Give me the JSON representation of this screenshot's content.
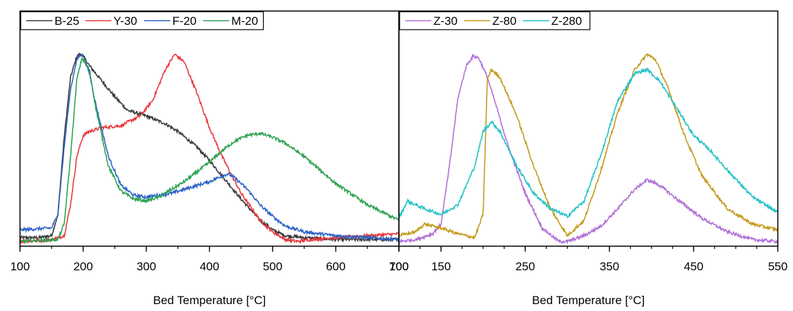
{
  "chart_data": [
    {
      "type": "line",
      "xlabel": "Bed Temperature [°C]",
      "ylabel": "",
      "xlim": [
        100,
        700
      ],
      "ylim": [
        0,
        1.0
      ],
      "xticks": [
        100,
        200,
        300,
        400,
        500,
        600,
        700
      ],
      "legend_position": "top-left",
      "series": [
        {
          "name": "B-25",
          "color": "#3a3a3a",
          "x": [
            100,
            130,
            150,
            160,
            170,
            180,
            190,
            198,
            210,
            230,
            250,
            270,
            300,
            330,
            350,
            380,
            400,
            420,
            450,
            480,
            500,
            520,
            550,
            600,
            650,
            700
          ],
          "y": [
            0.03,
            0.03,
            0.04,
            0.15,
            0.55,
            0.86,
            0.97,
            0.98,
            0.92,
            0.84,
            0.76,
            0.69,
            0.66,
            0.62,
            0.58,
            0.5,
            0.43,
            0.35,
            0.23,
            0.12,
            0.07,
            0.04,
            0.03,
            0.02,
            0.02,
            0.02
          ]
        },
        {
          "name": "Y-30",
          "color": "#e8383d",
          "x": [
            100,
            150,
            170,
            180,
            190,
            200,
            210,
            230,
            260,
            290,
            310,
            330,
            345,
            360,
            380,
            400,
            420,
            450,
            480,
            500,
            520,
            540,
            560,
            600,
            650,
            700
          ],
          "y": [
            0.01,
            0.02,
            0.04,
            0.2,
            0.45,
            0.56,
            0.58,
            0.6,
            0.61,
            0.66,
            0.74,
            0.9,
            0.98,
            0.94,
            0.78,
            0.6,
            0.45,
            0.26,
            0.12,
            0.06,
            0.02,
            0.01,
            0.02,
            0.03,
            0.04,
            0.05
          ]
        },
        {
          "name": "F-20",
          "color": "#2b63c6",
          "x": [
            100,
            150,
            160,
            170,
            180,
            190,
            195,
            200,
            210,
            220,
            240,
            260,
            280,
            300,
            320,
            340,
            360,
            380,
            400,
            420,
            430,
            440,
            460,
            480,
            500,
            520,
            550,
            600,
            650,
            700
          ],
          "y": [
            0.07,
            0.08,
            0.15,
            0.5,
            0.8,
            0.95,
            0.98,
            0.97,
            0.88,
            0.72,
            0.45,
            0.3,
            0.25,
            0.24,
            0.25,
            0.26,
            0.28,
            0.3,
            0.32,
            0.35,
            0.36,
            0.34,
            0.28,
            0.2,
            0.14,
            0.09,
            0.06,
            0.04,
            0.03,
            0.02
          ]
        },
        {
          "name": "M-20",
          "color": "#2ea352",
          "x": [
            100,
            160,
            170,
            180,
            190,
            198,
            210,
            220,
            240,
            260,
            280,
            300,
            320,
            340,
            360,
            380,
            400,
            420,
            440,
            460,
            480,
            500,
            520,
            550,
            600,
            650,
            700
          ],
          "y": [
            0.01,
            0.02,
            0.1,
            0.45,
            0.85,
            0.96,
            0.9,
            0.7,
            0.4,
            0.27,
            0.23,
            0.22,
            0.24,
            0.28,
            0.32,
            0.37,
            0.42,
            0.48,
            0.53,
            0.56,
            0.57,
            0.55,
            0.52,
            0.45,
            0.31,
            0.2,
            0.12
          ]
        }
      ]
    },
    {
      "type": "line",
      "xlabel": "Bed Temperature [°C]",
      "ylabel": "",
      "xlim": [
        100,
        550
      ],
      "ylim": [
        0,
        1.0
      ],
      "xticks": [
        100,
        150,
        250,
        350,
        450,
        550
      ],
      "legend_position": "top-left",
      "series": [
        {
          "name": "Z-30",
          "color": "#b06fd6",
          "x": [
            100,
            120,
            140,
            150,
            160,
            170,
            180,
            188,
            195,
            205,
            215,
            230,
            250,
            270,
            290,
            300,
            320,
            340,
            360,
            380,
            395,
            410,
            430,
            460,
            490,
            520,
            550
          ],
          "y": [
            0.01,
            0.02,
            0.05,
            0.1,
            0.4,
            0.75,
            0.92,
            0.97,
            0.96,
            0.86,
            0.72,
            0.5,
            0.26,
            0.08,
            0.01,
            0.01,
            0.04,
            0.09,
            0.18,
            0.28,
            0.33,
            0.3,
            0.23,
            0.13,
            0.06,
            0.02,
            0.01
          ]
        },
        {
          "name": "Z-80",
          "color": "#c39a1c",
          "x": [
            100,
            120,
            130,
            150,
            170,
            190,
            200,
            205,
            210,
            220,
            240,
            260,
            280,
            300,
            320,
            340,
            360,
            380,
            395,
            405,
            420,
            440,
            460,
            490,
            520,
            550
          ],
          "y": [
            0.04,
            0.06,
            0.1,
            0.08,
            0.05,
            0.03,
            0.15,
            0.85,
            0.9,
            0.86,
            0.66,
            0.4,
            0.18,
            0.04,
            0.12,
            0.38,
            0.68,
            0.9,
            0.98,
            0.95,
            0.8,
            0.55,
            0.35,
            0.18,
            0.1,
            0.07
          ]
        },
        {
          "name": "Z-280",
          "color": "#22c2c6",
          "x": [
            100,
            110,
            130,
            150,
            170,
            190,
            200,
            210,
            220,
            240,
            260,
            280,
            300,
            320,
            340,
            360,
            380,
            395,
            410,
            430,
            450,
            470,
            490,
            520,
            550
          ],
          "y": [
            0.13,
            0.22,
            0.18,
            0.15,
            0.2,
            0.4,
            0.58,
            0.63,
            0.58,
            0.4,
            0.26,
            0.18,
            0.14,
            0.22,
            0.46,
            0.74,
            0.88,
            0.9,
            0.84,
            0.7,
            0.56,
            0.48,
            0.38,
            0.24,
            0.16
          ]
        }
      ]
    }
  ]
}
